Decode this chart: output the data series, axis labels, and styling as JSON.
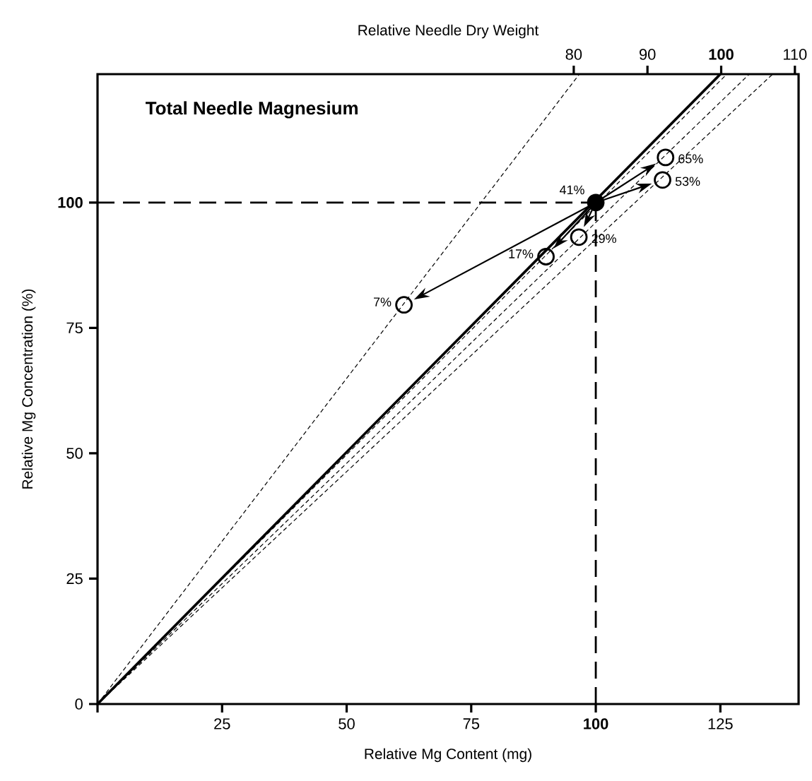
{
  "chart_data": {
    "type": "line",
    "title": "Total Needle Magnesium",
    "xlabel": "Relative Mg Content (mg)",
    "ylabel": "Relative Mg Concentration (%)",
    "x2label": "Relative Needle Dry Weight",
    "xlim": [
      0,
      140.7
    ],
    "ylim": [
      0,
      125.6
    ],
    "x2lim": [
      15.4,
      110.5
    ],
    "xticks": [
      {
        "value": 0,
        "label": null
      },
      25,
      50,
      75,
      {
        "value": 100,
        "label": "**100**"
      },
      125
    ],
    "yticks": [
      0,
      25,
      50,
      75,
      {
        "value": 100,
        "label": "**100**"
      }
    ],
    "x2ticks": [
      80,
      90,
      {
        "value": 100,
        "label": "**100**"
      },
      110
    ],
    "annotations": [
      {
        "text": "41%",
        "x": 100,
        "y": 100
      },
      {
        "text": "7%",
        "x": 61.5,
        "y": 79.6
      },
      {
        "text": "17%",
        "x": 90.0,
        "y": 89.2
      },
      {
        "text": "29%",
        "x": 96.6,
        "y": 93.1
      },
      {
        "text": "53%",
        "x": 113.4,
        "y": 104.5
      },
      {
        "text": "65%",
        "x": 114.0,
        "y": 109.0
      }
    ],
    "series": [
      {
        "color": "#000000",
        "line_style": "dotted",
        "x": [
          0,
          96.7
        ],
        "values": [
          0,
          125.6
        ]
      },
      {
        "color": "#000000",
        "line_style": "solid",
        "x": [
          0,
          125.0
        ],
        "values": [
          0,
          125.6
        ]
      },
      {
        "color": "#000000",
        "line_style": "dotted",
        "x": [
          0,
          126.3
        ],
        "values": [
          0,
          125.6
        ]
      },
      {
        "color": "#000000",
        "line_style": "dotted",
        "x": [
          0,
          130.8
        ],
        "values": [
          0,
          125.6
        ]
      },
      {
        "color": "#000000",
        "line_style": "dotted",
        "x": [
          0,
          135.5
        ],
        "values": [
          0,
          125.6
        ]
      },
      {
        "color": "#000000",
        "line_style": "dashed",
        "x": [
          0,
          100
        ],
        "values": [
          100,
          100
        ]
      },
      {
        "color": "#000000",
        "line_style": "dashed",
        "x": [
          100,
          100
        ],
        "values": [
          0,
          100
        ]
      },
      {
        "type": "scatter",
        "color": "#000000",
        "marker": "circle",
        "x": [
          100
        ],
        "values": [
          100
        ]
      },
      {
        "type": "scatter",
        "color": "#000000",
        "marker": "circle",
        "x": [
          61.5,
          90.0,
          96.6,
          113.4,
          114.0
        ],
        "values": [
          79.6,
          89.2,
          93.1,
          104.5,
          109.0
        ]
      }
    ]
  }
}
